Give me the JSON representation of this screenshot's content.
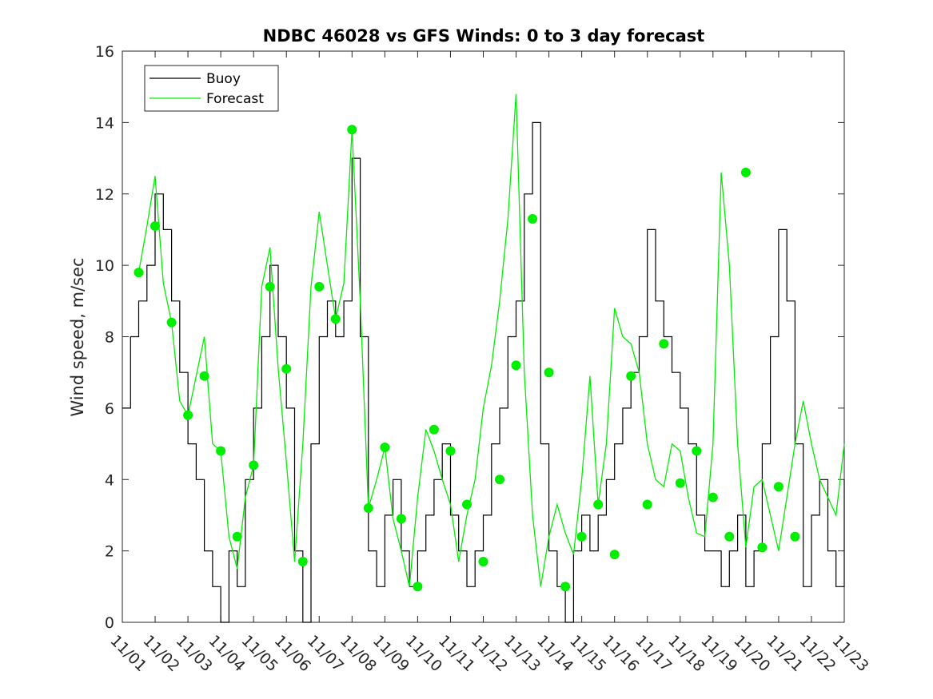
{
  "chart_data": {
    "type": "line",
    "title": "NDBC 46028 vs GFS Winds: 0 to 3 day forecast",
    "xlabel": "",
    "ylabel": "Wind speed, m/sec",
    "ylim": [
      0,
      16
    ],
    "xlim": [
      "11/01",
      "11/23"
    ],
    "yticks": [
      0,
      2,
      4,
      6,
      8,
      10,
      12,
      14,
      16
    ],
    "xticks": [
      "11/01",
      "11/02",
      "11/03",
      "11/04",
      "11/05",
      "11/06",
      "11/07",
      "11/08",
      "11/09",
      "11/10",
      "11/11",
      "11/12",
      "11/13",
      "11/14",
      "11/15",
      "11/16",
      "11/17",
      "11/18",
      "11/19",
      "11/20",
      "11/21",
      "11/22",
      "11/23"
    ],
    "grid": false,
    "legend_position": "top-left",
    "colors": {
      "buoy": "#000000",
      "forecast": "#00ee00"
    },
    "series": [
      {
        "name": "Buoy",
        "kind": "line",
        "x": [
          0.0,
          0.25,
          0.5,
          0.75,
          1.0,
          1.25,
          1.5,
          1.75,
          2.0,
          2.25,
          2.5,
          2.75,
          3.0,
          3.25,
          3.5,
          3.75,
          4.0,
          4.25,
          4.5,
          4.75,
          5.0,
          5.25,
          5.5,
          5.75,
          6.0,
          6.25,
          6.5,
          6.75,
          7.0,
          7.25,
          7.5,
          7.75,
          8.0,
          8.25,
          8.5,
          8.75,
          9.0,
          9.25,
          9.5,
          9.75,
          10.0,
          10.25,
          10.5,
          10.75,
          11.0,
          11.25,
          11.5,
          11.75,
          12.0,
          12.25,
          12.5,
          12.75,
          13.0,
          13.25,
          13.5,
          13.75,
          14.0,
          14.25,
          14.5,
          14.75,
          15.0,
          15.25,
          15.5,
          15.75,
          16.0,
          16.25,
          16.5,
          16.75,
          17.0,
          17.25,
          17.5,
          17.75,
          18.0,
          18.25,
          18.5,
          18.75,
          19.0,
          19.25,
          19.5,
          19.75,
          20.0,
          20.25,
          20.5,
          20.75,
          21.0,
          21.25,
          21.5,
          21.75,
          22.0
        ],
        "y": [
          6,
          8,
          9,
          10,
          12,
          11,
          9,
          7,
          5,
          4,
          2,
          1,
          0,
          2,
          1,
          4,
          6,
          8,
          10,
          8,
          6,
          2,
          0,
          5,
          8,
          9,
          8,
          9,
          13,
          8,
          2,
          1,
          3,
          4,
          2,
          1,
          2,
          3,
          4,
          5,
          3,
          2,
          1,
          2,
          3,
          5,
          6,
          8,
          9,
          12,
          14,
          5,
          2,
          1,
          0,
          2,
          3,
          2,
          3,
          4,
          5,
          6,
          7,
          8,
          11,
          9,
          8,
          7,
          6,
          5,
          3,
          2,
          2,
          1,
          2,
          3,
          1,
          2,
          5,
          8,
          11,
          9,
          5,
          1,
          3,
          4,
          2,
          1,
          4
        ]
      },
      {
        "name": "Forecast",
        "kind": "line",
        "x": [
          0.5,
          0.75,
          1.0,
          1.25,
          1.5,
          1.75,
          2.0,
          2.25,
          2.5,
          2.75,
          3.0,
          3.25,
          3.5,
          3.75,
          4.0,
          4.25,
          4.5,
          4.75,
          5.0,
          5.25,
          5.5,
          5.75,
          6.0,
          6.25,
          6.5,
          6.75,
          7.0,
          7.25,
          7.5,
          7.75,
          8.0,
          8.25,
          8.5,
          8.75,
          9.0,
          9.25,
          9.5,
          9.75,
          10.0,
          10.25,
          10.5,
          10.75,
          11.0,
          11.25,
          11.5,
          11.75,
          12.0,
          12.25,
          12.5,
          12.75,
          13.0,
          13.25,
          13.5,
          13.75,
          14.0,
          14.25,
          14.5,
          14.75,
          15.0,
          15.25,
          15.5,
          15.75,
          16.0,
          16.25,
          16.5,
          16.75,
          17.0,
          17.25,
          17.5,
          17.75,
          18.0,
          18.25,
          18.5,
          18.75,
          19.0,
          19.25,
          19.5,
          19.75,
          20.0,
          20.25,
          20.5,
          20.75,
          21.0,
          21.25,
          21.5,
          21.75,
          22.0
        ],
        "y": [
          9.8,
          11.1,
          12.5,
          9.5,
          8.4,
          6.2,
          5.8,
          6.9,
          8.0,
          5.0,
          4.8,
          2.4,
          1.5,
          3.5,
          4.4,
          9.4,
          10.5,
          7.1,
          4.5,
          1.7,
          5.0,
          9.4,
          11.5,
          10.0,
          8.5,
          9.5,
          13.8,
          9.0,
          3.2,
          4.0,
          4.9,
          2.9,
          2.0,
          1.0,
          3.5,
          5.4,
          4.8,
          4.0,
          3.3,
          1.7,
          3.0,
          4.0,
          6.0,
          7.2,
          9.0,
          11.3,
          14.8,
          7.0,
          3.0,
          1.0,
          2.4,
          3.3,
          2.5,
          1.9,
          4.0,
          6.9,
          3.3,
          5.0,
          8.8,
          8.0,
          7.8,
          7.0,
          5.0,
          4.0,
          3.8,
          5.0,
          4.8,
          3.5,
          2.5,
          2.4,
          5.0,
          12.6,
          10.0,
          5.0,
          2.1,
          3.8,
          4.0,
          3.0,
          2.0,
          3.5,
          5.0,
          6.2,
          5.0,
          4.0,
          3.5,
          3.0,
          5.0
        ]
      },
      {
        "name": "",
        "kind": "markers",
        "x": [
          0.5,
          1.0,
          1.5,
          2.0,
          2.5,
          3.0,
          3.5,
          4.0,
          4.5,
          5.0,
          5.5,
          6.0,
          6.5,
          7.0,
          7.5,
          8.0,
          8.5,
          9.0,
          9.5,
          10.0,
          10.5,
          11.0,
          11.5,
          12.0,
          12.5,
          13.0,
          13.5,
          14.0,
          14.5,
          15.0,
          15.5,
          16.0,
          16.5,
          17.0,
          17.5,
          18.0,
          18.5,
          19.0,
          19.5,
          20.0,
          20.5
        ],
        "y": [
          9.8,
          11.1,
          8.4,
          5.8,
          6.9,
          4.8,
          2.4,
          4.4,
          9.4,
          7.1,
          1.7,
          9.4,
          8.5,
          13.8,
          3.2,
          4.9,
          2.9,
          1.0,
          5.4,
          4.8,
          3.3,
          1.7,
          4.0,
          7.2,
          11.3,
          7.0,
          1.0,
          2.4,
          3.3,
          1.9,
          6.9,
          3.3,
          7.8,
          3.9,
          4.8,
          3.5,
          2.4,
          12.6,
          2.1,
          3.8,
          2.4
        ]
      }
    ]
  }
}
